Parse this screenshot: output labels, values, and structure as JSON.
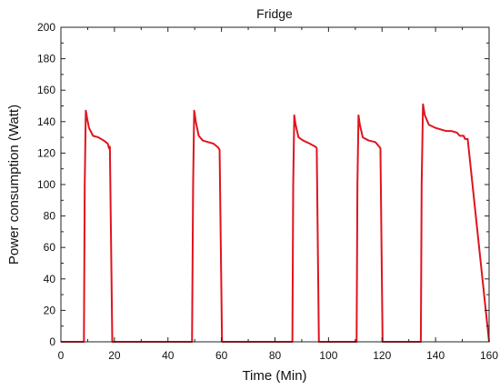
{
  "chart_data": {
    "type": "line",
    "title": "Fridge",
    "xlabel": "Time (Min)",
    "ylabel": "Power consumption (Watt)",
    "xlim": [
      0,
      160
    ],
    "ylim": [
      0,
      200
    ],
    "xticks": [
      0,
      20,
      40,
      60,
      80,
      100,
      120,
      140,
      160
    ],
    "yticks": [
      0,
      20,
      40,
      60,
      80,
      100,
      120,
      140,
      160,
      180,
      200
    ],
    "grid": false,
    "legend": "none",
    "series": [
      {
        "color": "#e0141e",
        "x": [
          0,
          8.6,
          8.9,
          9.3,
          9.8,
          10.5,
          12,
          14,
          16,
          17.5,
          18,
          18.3,
          19.2,
          49,
          49.4,
          49.8,
          50.4,
          51.5,
          53,
          55,
          57,
          58.5,
          59,
          59.3,
          60.2,
          86.5,
          86.8,
          87.2,
          87.7,
          88.8,
          90.5,
          93,
          95.2,
          95.6,
          96.4,
          110.5,
          110.8,
          111.2,
          111.7,
          112.8,
          115,
          117.5,
          119,
          119.4,
          120.2,
          134.5,
          134.8,
          135.3,
          136,
          137.5,
          140,
          142,
          144,
          146,
          148,
          149,
          150.5,
          151,
          151.3,
          152,
          160
        ],
        "y": [
          0,
          0,
          100,
          147,
          142,
          136,
          131,
          130,
          128,
          126,
          123,
          124,
          0,
          0,
          100,
          147,
          140,
          131,
          128,
          127,
          126,
          124,
          123,
          122,
          0,
          0,
          100,
          144,
          138,
          130,
          128,
          126,
          124,
          123,
          0,
          0,
          100,
          144,
          138,
          130,
          128,
          127,
          124,
          123,
          0,
          0,
          100,
          151,
          144,
          138,
          136,
          135,
          134,
          134,
          133,
          131,
          131,
          129,
          129,
          129,
          0
        ]
      }
    ]
  }
}
